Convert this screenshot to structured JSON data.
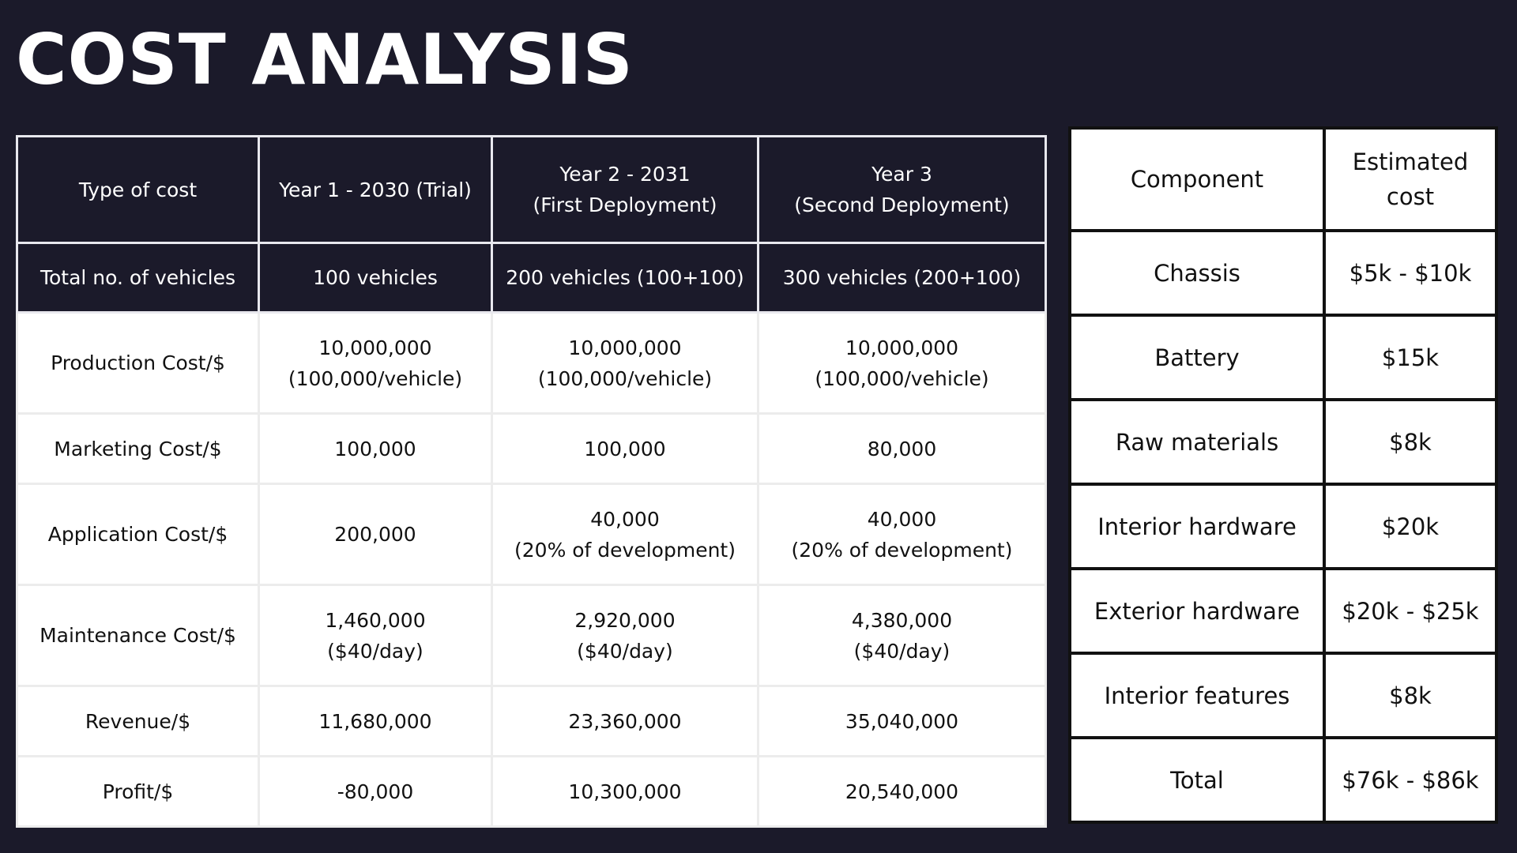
{
  "title": "COST ANALYSIS",
  "cost_table": {
    "headers": [
      {
        "lines": [
          "Type of cost"
        ]
      },
      {
        "lines": [
          "Year 1 - 2030 (Trial)"
        ]
      },
      {
        "lines": [
          "Year 2 - 2031",
          "(First Deployment)"
        ]
      },
      {
        "lines": [
          "Year 3",
          "(Second Deployment)"
        ]
      }
    ],
    "vehicles_row": [
      "Total no. of vehicles",
      "100 vehicles",
      "200 vehicles (100+100)",
      "300 vehicles (200+100)"
    ],
    "rows": [
      {
        "label": "Production Cost/$",
        "cells": [
          [
            "10,000,000",
            "(100,000/vehicle)"
          ],
          [
            "10,000,000",
            "(100,000/vehicle)"
          ],
          [
            "10,000,000",
            "(100,000/vehicle)"
          ]
        ]
      },
      {
        "label": "Marketing Cost/$",
        "cells": [
          [
            "100,000"
          ],
          [
            "100,000"
          ],
          [
            "80,000"
          ]
        ]
      },
      {
        "label": "Application Cost/$",
        "cells": [
          [
            "200,000"
          ],
          [
            "40,000",
            "(20% of development)"
          ],
          [
            "40,000",
            "(20% of development)"
          ]
        ]
      },
      {
        "label": "Maintenance Cost/$",
        "cells": [
          [
            "1,460,000",
            "($40/day)"
          ],
          [
            "2,920,000",
            "($40/day)"
          ],
          [
            "4,380,000",
            "($40/day)"
          ]
        ]
      },
      {
        "label": "Revenue/$",
        "cells": [
          [
            "11,680,000"
          ],
          [
            "23,360,000"
          ],
          [
            "35,040,000"
          ]
        ]
      },
      {
        "label": "Profit/$",
        "cells": [
          [
            "-80,000"
          ],
          [
            "10,300,000"
          ],
          [
            "20,540,000"
          ]
        ]
      }
    ]
  },
  "component_table": {
    "headers": [
      {
        "lines": [
          "Component"
        ]
      },
      {
        "lines": [
          "Estimated",
          "cost"
        ]
      }
    ],
    "rows": [
      {
        "component": "Chassis",
        "cost": "$5k - $10k"
      },
      {
        "component": "Battery",
        "cost": "$15k"
      },
      {
        "component": "Raw materials",
        "cost": "$8k"
      },
      {
        "component": "Interior hardware",
        "cost": "$20k"
      },
      {
        "component": "Exterior hardware",
        "cost": "$20k - $25k"
      },
      {
        "component": "Interior features",
        "cost": "$8k"
      },
      {
        "component": "Total",
        "cost": "$76k - $86k"
      }
    ]
  },
  "colors": {
    "background": "#1b1a2a",
    "header_text": "#ffffff",
    "cell_background": "#ffffff",
    "text": "#111111"
  }
}
